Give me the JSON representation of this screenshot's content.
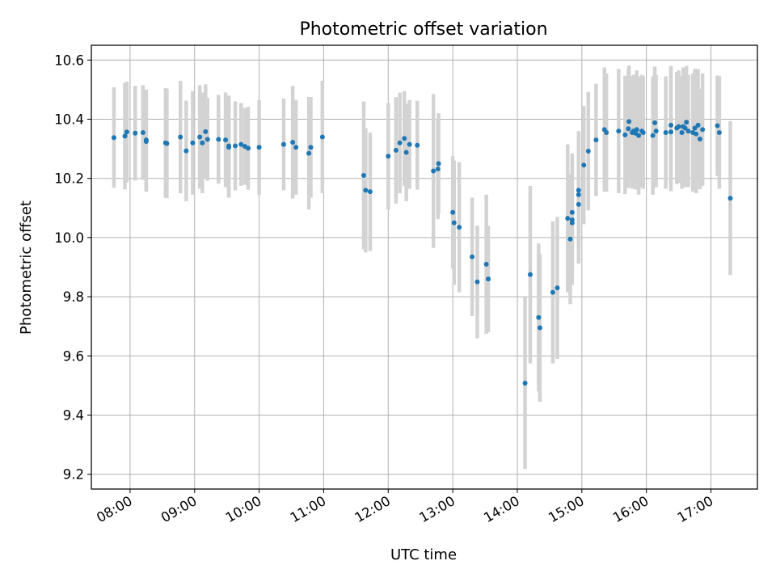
{
  "chart_data": {
    "type": "scatter",
    "title": "Photometric offset variation",
    "xlabel": "UTC time",
    "ylabel": "Photometric offset",
    "xlim_hours": [
      7.4,
      17.72
    ],
    "ylim": [
      9.15,
      10.65
    ],
    "grid": true,
    "x_ticks": [
      "08:00",
      "09:00",
      "10:00",
      "11:00",
      "12:00",
      "13:00",
      "14:00",
      "15:00",
      "16:00",
      "17:00"
    ],
    "y_ticks": [
      "9.2",
      "9.4",
      "9.6",
      "9.8",
      "10.0",
      "10.2",
      "10.4",
      "10.6"
    ],
    "colors": {
      "point": "#1f77b4",
      "errorbar": "#d3d3d3",
      "grid": "#b0b0b0"
    },
    "points": [
      [
        7.75,
        10.338,
        0.17
      ],
      [
        7.92,
        10.343,
        0.18
      ],
      [
        7.95,
        10.357,
        0.17
      ],
      [
        8.08,
        10.353,
        0.16
      ],
      [
        8.2,
        10.355,
        0.16
      ],
      [
        8.25,
        10.33,
        0.17
      ],
      [
        8.25,
        10.325,
        0.17
      ],
      [
        8.55,
        10.32,
        0.185
      ],
      [
        8.57,
        10.318,
        0.185
      ],
      [
        8.78,
        10.34,
        0.19
      ],
      [
        8.87,
        10.293,
        0.17
      ],
      [
        8.97,
        10.32,
        0.175
      ],
      [
        9.08,
        10.34,
        0.175
      ],
      [
        9.12,
        10.32,
        0.17
      ],
      [
        9.17,
        10.358,
        0.16
      ],
      [
        9.2,
        10.332,
        0.14
      ],
      [
        9.37,
        10.332,
        0.15
      ],
      [
        9.48,
        10.33,
        0.16
      ],
      [
        9.53,
        10.305,
        0.17
      ],
      [
        9.53,
        10.31,
        0.17
      ],
      [
        9.63,
        10.31,
        0.15
      ],
      [
        9.72,
        10.315,
        0.14
      ],
      [
        9.78,
        10.308,
        0.13
      ],
      [
        9.83,
        10.302,
        0.14
      ],
      [
        10.0,
        10.305,
        0.16
      ],
      [
        10.38,
        10.315,
        0.155
      ],
      [
        10.52,
        10.322,
        0.19
      ],
      [
        10.57,
        10.305,
        0.16
      ],
      [
        10.77,
        10.285,
        0.19
      ],
      [
        10.8,
        10.305,
        0.17
      ],
      [
        10.98,
        10.34,
        0.19
      ],
      [
        11.62,
        10.21,
        0.25
      ],
      [
        11.65,
        10.16,
        0.21
      ],
      [
        11.72,
        10.155,
        0.2
      ],
      [
        12.0,
        10.275,
        0.18
      ],
      [
        12.12,
        10.295,
        0.18
      ],
      [
        12.18,
        10.32,
        0.17
      ],
      [
        12.25,
        10.335,
        0.16
      ],
      [
        12.28,
        10.288,
        0.165
      ],
      [
        12.33,
        10.315,
        0.15
      ],
      [
        12.45,
        10.312,
        0.15
      ],
      [
        12.7,
        10.225,
        0.26
      ],
      [
        12.77,
        10.232,
        0.17
      ],
      [
        12.78,
        10.25,
        0.17
      ],
      [
        13.0,
        10.085,
        0.19
      ],
      [
        13.02,
        10.05,
        0.21
      ],
      [
        13.1,
        10.035,
        0.22
      ],
      [
        13.3,
        9.935,
        0.2
      ],
      [
        13.38,
        9.85,
        0.19
      ],
      [
        13.52,
        9.91,
        0.235
      ],
      [
        13.55,
        9.86,
        0.18
      ],
      [
        14.12,
        9.508,
        0.29
      ],
      [
        14.2,
        9.875,
        0.3
      ],
      [
        14.33,
        9.73,
        0.25
      ],
      [
        14.35,
        9.695,
        0.25
      ],
      [
        14.55,
        9.815,
        0.24
      ],
      [
        14.62,
        9.83,
        0.24
      ],
      [
        14.78,
        10.065,
        0.25
      ],
      [
        14.82,
        9.995,
        0.22
      ],
      [
        14.85,
        10.06,
        0.21
      ],
      [
        14.85,
        10.05,
        0.21
      ],
      [
        14.85,
        10.085,
        0.2
      ],
      [
        14.95,
        10.16,
        0.2
      ],
      [
        14.95,
        10.145,
        0.2
      ],
      [
        14.95,
        10.112,
        0.2
      ],
      [
        15.03,
        10.245,
        0.2
      ],
      [
        15.1,
        10.292,
        0.2
      ],
      [
        15.22,
        10.33,
        0.19
      ],
      [
        15.35,
        10.365,
        0.21
      ],
      [
        15.38,
        10.355,
        0.2
      ],
      [
        15.57,
        10.36,
        0.21
      ],
      [
        15.67,
        10.347,
        0.2
      ],
      [
        15.72,
        10.368,
        0.2
      ],
      [
        15.73,
        10.392,
        0.19
      ],
      [
        15.78,
        10.355,
        0.19
      ],
      [
        15.8,
        10.36,
        0.19
      ],
      [
        15.83,
        10.353,
        0.19
      ],
      [
        15.85,
        10.365,
        0.2
      ],
      [
        15.88,
        10.345,
        0.2
      ],
      [
        15.93,
        10.36,
        0.19
      ],
      [
        15.95,
        10.355,
        0.19
      ],
      [
        16.1,
        10.345,
        0.2
      ],
      [
        16.13,
        10.388,
        0.19
      ],
      [
        16.15,
        10.36,
        0.19
      ],
      [
        16.3,
        10.355,
        0.19
      ],
      [
        16.38,
        10.357,
        0.2
      ],
      [
        16.38,
        10.38,
        0.2
      ],
      [
        16.47,
        10.37,
        0.19
      ],
      [
        16.5,
        10.375,
        0.19
      ],
      [
        16.55,
        10.355,
        0.19
      ],
      [
        16.57,
        10.375,
        0.2
      ],
      [
        16.6,
        10.37,
        0.2
      ],
      [
        16.62,
        10.39,
        0.19
      ],
      [
        16.65,
        10.36,
        0.19
      ],
      [
        16.72,
        10.355,
        0.2
      ],
      [
        16.75,
        10.37,
        0.2
      ],
      [
        16.77,
        10.35,
        0.2
      ],
      [
        16.8,
        10.38,
        0.19
      ],
      [
        16.83,
        10.333,
        0.17
      ],
      [
        16.87,
        10.365,
        0.19
      ],
      [
        17.1,
        10.378,
        0.17
      ],
      [
        17.13,
        10.355,
        0.19
      ],
      [
        17.3,
        10.133,
        0.26
      ]
    ]
  }
}
